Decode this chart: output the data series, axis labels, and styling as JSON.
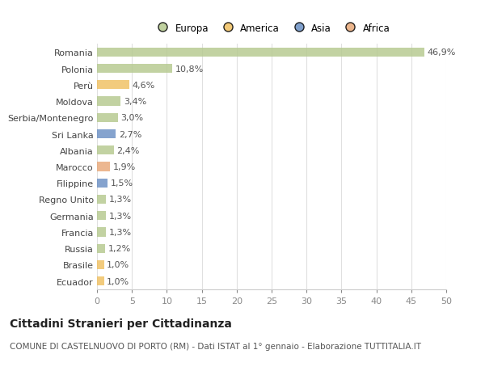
{
  "categories": [
    "Romania",
    "Polonia",
    "Perù",
    "Moldova",
    "Serbia/Montenegro",
    "Sri Lanka",
    "Albania",
    "Marocco",
    "Filippine",
    "Regno Unito",
    "Germania",
    "Francia",
    "Russia",
    "Brasile",
    "Ecuador"
  ],
  "values": [
    46.9,
    10.8,
    4.6,
    3.4,
    3.0,
    2.7,
    2.4,
    1.9,
    1.5,
    1.3,
    1.3,
    1.3,
    1.2,
    1.0,
    1.0
  ],
  "labels": [
    "46,9%",
    "10,8%",
    "4,6%",
    "3,4%",
    "3,0%",
    "2,7%",
    "2,4%",
    "1,9%",
    "1,5%",
    "1,3%",
    "1,3%",
    "1,3%",
    "1,2%",
    "1,0%",
    "1,0%"
  ],
  "colors": [
    "#b5c98e",
    "#b5c98e",
    "#f0c060",
    "#b5c98e",
    "#b5c98e",
    "#6a8fc4",
    "#b5c98e",
    "#e8a878",
    "#6a8fc4",
    "#b5c98e",
    "#b5c98e",
    "#b5c98e",
    "#b5c98e",
    "#f0c060",
    "#f0c060"
  ],
  "legend_labels": [
    "Europa",
    "America",
    "Asia",
    "Africa"
  ],
  "legend_colors": [
    "#b5c98e",
    "#f0c060",
    "#6a8fc4",
    "#e8a878"
  ],
  "xlim": [
    0,
    50
  ],
  "xticks": [
    0,
    5,
    10,
    15,
    20,
    25,
    30,
    35,
    40,
    45,
    50
  ],
  "title": "Cittadini Stranieri per Cittadinanza",
  "subtitle": "COMUNE DI CASTELNUOVO DI PORTO (RM) - Dati ISTAT al 1° gennaio - Elaborazione TUTTITALIA.IT",
  "background_color": "#ffffff",
  "grid_color": "#e0e0e0",
  "bar_height": 0.55,
  "label_fontsize": 8,
  "ytick_fontsize": 8,
  "xtick_fontsize": 8,
  "title_fontsize": 10,
  "subtitle_fontsize": 7.5,
  "legend_fontsize": 8.5
}
